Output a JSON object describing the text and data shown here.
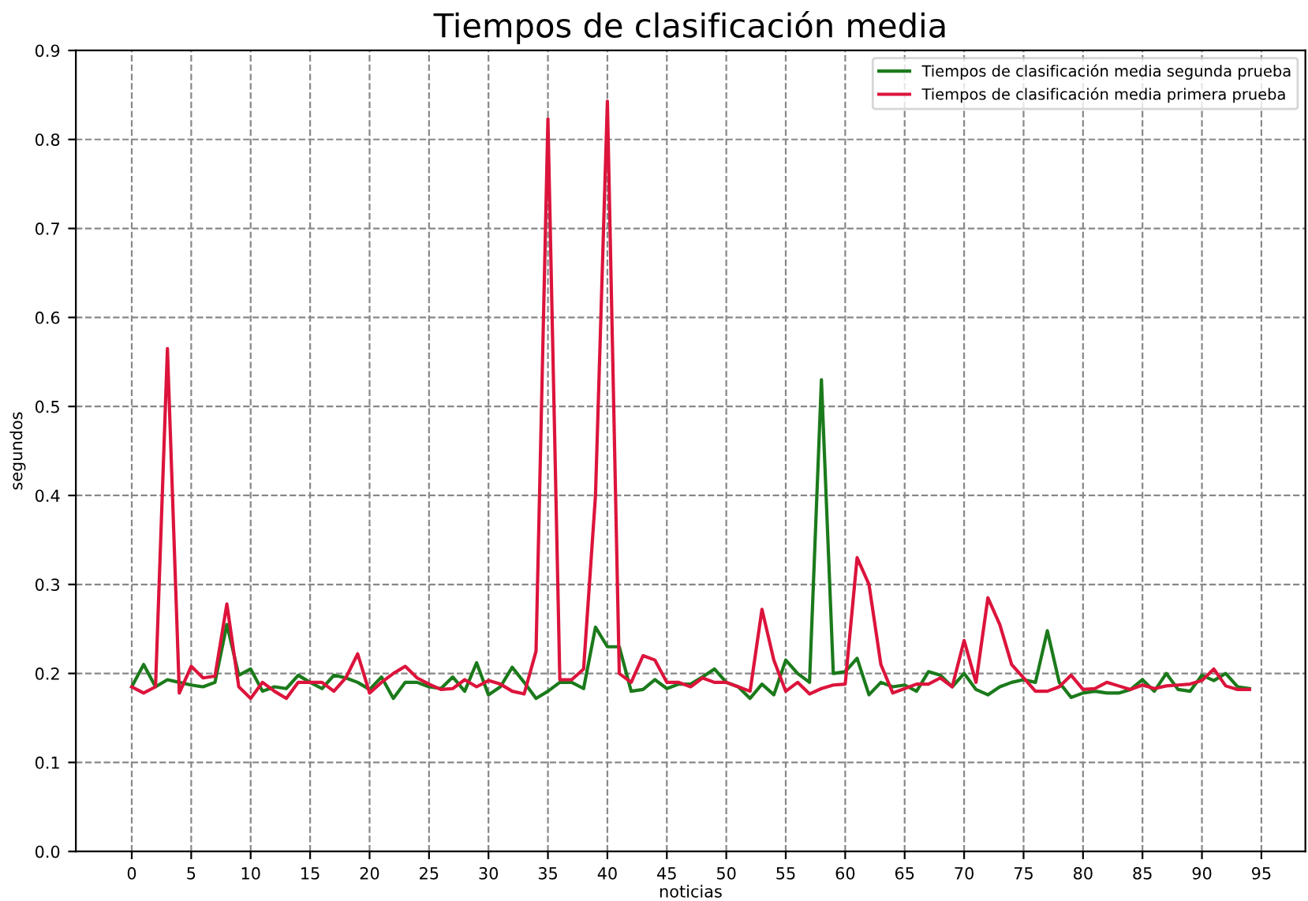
{
  "chart_data": {
    "type": "line",
    "title": "Tiempos de clasificación media",
    "xlabel": "noticias",
    "ylabel": "segundos",
    "x": [
      0,
      1,
      2,
      3,
      4,
      5,
      6,
      7,
      8,
      9,
      10,
      11,
      12,
      13,
      14,
      15,
      16,
      17,
      18,
      19,
      20,
      21,
      22,
      23,
      24,
      25,
      26,
      27,
      28,
      29,
      30,
      31,
      32,
      33,
      34,
      35,
      36,
      37,
      38,
      39,
      40,
      41,
      42,
      43,
      44,
      45,
      46,
      47,
      48,
      49,
      50,
      51,
      52,
      53,
      54,
      55,
      56,
      57,
      58,
      59,
      60,
      61,
      62,
      63,
      64,
      65,
      66,
      67,
      68,
      69,
      70,
      71,
      72,
      73,
      74,
      75,
      76,
      77,
      78,
      79,
      80,
      81,
      82,
      83,
      84,
      85,
      86,
      87,
      88,
      89,
      90,
      91,
      92,
      93,
      94
    ],
    "series": [
      {
        "name": "Tiempos de clasificación media segunda prueba",
        "color": "#1b7a1b",
        "values": [
          0.185,
          0.21,
          0.185,
          0.193,
          0.19,
          0.187,
          0.185,
          0.19,
          0.255,
          0.198,
          0.205,
          0.18,
          0.185,
          0.183,
          0.198,
          0.19,
          0.183,
          0.198,
          0.195,
          0.19,
          0.182,
          0.196,
          0.172,
          0.19,
          0.19,
          0.185,
          0.183,
          0.196,
          0.18,
          0.212,
          0.176,
          0.185,
          0.207,
          0.19,
          0.172,
          0.18,
          0.19,
          0.19,
          0.183,
          0.252,
          0.23,
          0.23,
          0.18,
          0.182,
          0.193,
          0.183,
          0.188,
          0.188,
          0.196,
          0.205,
          0.19,
          0.185,
          0.172,
          0.188,
          0.176,
          0.215,
          0.2,
          0.19,
          0.53,
          0.2,
          0.202,
          0.217,
          0.176,
          0.19,
          0.185,
          0.187,
          0.18,
          0.202,
          0.198,
          0.185,
          0.2,
          0.182,
          0.176,
          0.185,
          0.19,
          0.193,
          0.19,
          0.248,
          0.19,
          0.173,
          0.178,
          0.18,
          0.178,
          0.178,
          0.182,
          0.193,
          0.18,
          0.2,
          0.182,
          0.18,
          0.198,
          0.192,
          0.2,
          0.185,
          0.183
        ]
      },
      {
        "name": "Tiempos de clasificación media primera prueba",
        "color": "#dc143c",
        "values": [
          0.185,
          0.178,
          0.185,
          0.565,
          0.178,
          0.208,
          0.195,
          0.197,
          0.278,
          0.185,
          0.172,
          0.19,
          0.18,
          0.172,
          0.19,
          0.19,
          0.19,
          0.18,
          0.195,
          0.222,
          0.178,
          0.19,
          0.2,
          0.208,
          0.195,
          0.188,
          0.182,
          0.183,
          0.193,
          0.185,
          0.192,
          0.188,
          0.18,
          0.177,
          0.225,
          0.823,
          0.193,
          0.193,
          0.205,
          0.4,
          0.843,
          0.2,
          0.19,
          0.22,
          0.215,
          0.19,
          0.19,
          0.185,
          0.195,
          0.19,
          0.19,
          0.185,
          0.18,
          0.272,
          0.215,
          0.18,
          0.19,
          0.177,
          0.183,
          0.187,
          0.188,
          0.33,
          0.3,
          0.21,
          0.178,
          0.183,
          0.188,
          0.188,
          0.195,
          0.185,
          0.237,
          0.19,
          0.285,
          0.255,
          0.21,
          0.195,
          0.18,
          0.18,
          0.185,
          0.198,
          0.182,
          0.183,
          0.19,
          0.186,
          0.182,
          0.187,
          0.183,
          0.186,
          0.187,
          0.188,
          0.192,
          0.205,
          0.186,
          0.182,
          0.182
        ]
      }
    ],
    "xlim": [
      -4.7,
      98.7
    ],
    "xticks": [
      0,
      5,
      10,
      15,
      20,
      25,
      30,
      35,
      40,
      45,
      50,
      55,
      60,
      65,
      70,
      75,
      80,
      85,
      90,
      95
    ],
    "ylim": [
      0,
      0.9
    ],
    "yticks": [
      {
        "value": 0,
        "label": "0.0"
      },
      0.1,
      0.2,
      0.3,
      0.4,
      0.5,
      0.6,
      0.7,
      0.8,
      0.9
    ],
    "grid": true,
    "legend": "top right",
    "marker": "none",
    "line_style": "solid"
  }
}
